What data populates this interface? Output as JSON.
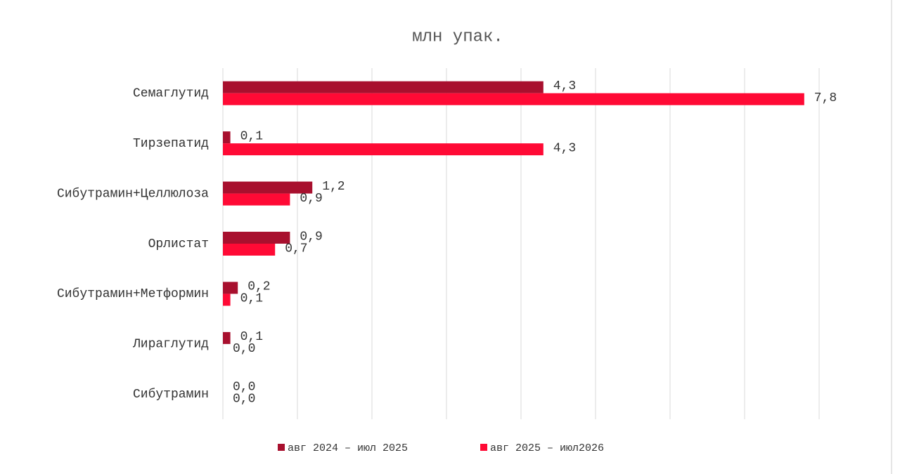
{
  "chart_data": {
    "type": "hbar",
    "title": "млн упак.",
    "categories": [
      "Семаглутид",
      "Тирзепатид",
      "Сибутрамин+Целлюлоза",
      "Орлистат",
      "Сибутрамин+Метформин",
      "Лираглутид",
      "Сибутрамин"
    ],
    "series": [
      {
        "name": "авг 2024 – июл 2025",
        "color": "#a8102e",
        "values": [
          4.3,
          0.1,
          1.2,
          0.9,
          0.2,
          0.1,
          0.0
        ],
        "value_labels": [
          "4,3",
          "0,1",
          "1,2",
          "0,9",
          "0,2",
          "0,1",
          "0,0"
        ]
      },
      {
        "name": "авг 2025 – июл2026",
        "color": "#ff0a35",
        "values": [
          7.8,
          4.3,
          0.9,
          0.7,
          0.1,
          0.0,
          0.0
        ],
        "value_labels": [
          "7,8",
          "4,3",
          "0,9",
          "0,7",
          "0,1",
          "0,0",
          "0,0"
        ]
      }
    ],
    "xlim": [
      0,
      8
    ],
    "xticks": [
      0,
      1,
      2,
      3,
      4,
      5,
      6,
      7,
      8
    ],
    "grid": true,
    "legend": "bottom"
  }
}
